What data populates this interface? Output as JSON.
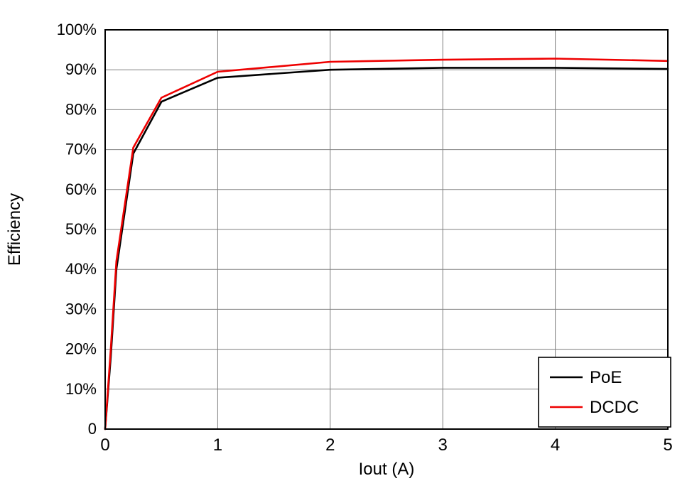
{
  "chart_data": {
    "type": "line",
    "title": "",
    "xlabel": "Iout (A)",
    "ylabel": "Efficiency",
    "xlim": [
      0,
      5
    ],
    "ylim": [
      0,
      100
    ],
    "x_ticks": [
      0,
      1,
      2,
      3,
      4,
      5
    ],
    "x_tick_labels": [
      "0",
      "1",
      "2",
      "3",
      "4",
      "5"
    ],
    "y_ticks": [
      0,
      10,
      20,
      30,
      40,
      50,
      60,
      70,
      80,
      90,
      100
    ],
    "y_tick_labels": [
      "0",
      "10%",
      "20%",
      "30%",
      "40%",
      "50%",
      "60%",
      "70%",
      "80%",
      "90%",
      "100%"
    ],
    "grid": true,
    "legend_position": "bottom-right",
    "x": [
      0,
      0.05,
      0.1,
      0.25,
      0.5,
      1,
      2,
      3,
      4,
      5
    ],
    "series": [
      {
        "name": "PoE",
        "color": "#000000",
        "values": [
          0,
          18,
          40,
          69.0,
          82.0,
          88.0,
          90.0,
          90.5,
          90.5,
          90.2
        ]
      },
      {
        "name": "DCDC",
        "color": "#ee0000",
        "values": [
          0,
          20,
          42,
          70.5,
          83.0,
          89.5,
          92.0,
          92.5,
          92.8,
          92.2
        ]
      }
    ]
  },
  "style": {
    "grid_color": "#808080",
    "axis_color": "#000000",
    "background": "#ffffff"
  }
}
